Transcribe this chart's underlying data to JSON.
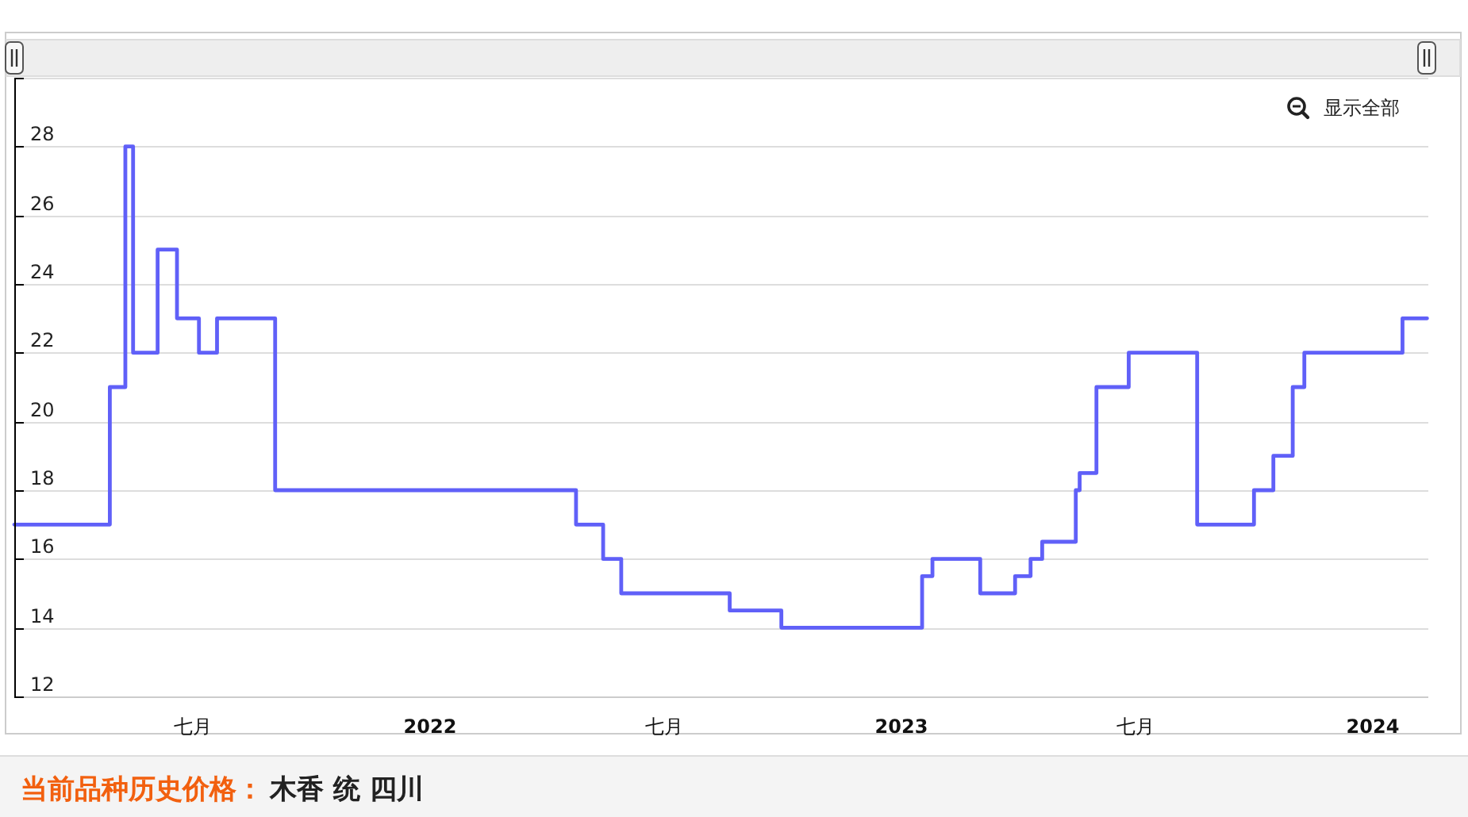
{
  "chart_data": {
    "type": "step",
    "x": [
      "2021-02-13",
      "2021-04-28",
      "2021-05-10",
      "2021-05-16",
      "2021-06-04",
      "2021-06-19",
      "2021-07-06",
      "2021-07-20",
      "2021-09-03",
      "2022-04-24",
      "2022-05-15",
      "2022-05-29",
      "2022-08-21",
      "2022-09-30",
      "2023-01-17",
      "2023-01-25",
      "2023-03-03",
      "2023-03-30",
      "2023-04-11",
      "2023-04-20",
      "2023-05-16",
      "2023-05-19",
      "2023-06-01",
      "2023-06-26",
      "2023-08-18",
      "2023-10-01",
      "2023-10-16",
      "2023-10-31",
      "2023-11-09",
      "2024-01-24",
      "2024-02-12"
    ],
    "series": [
      {
        "color": "#6060f8",
        "values": [
          17,
          21,
          28,
          22,
          25,
          23,
          22,
          23,
          18,
          17,
          16,
          15,
          14.5,
          14,
          15.5,
          16,
          15,
          15.5,
          16,
          16.5,
          18,
          18.5,
          21,
          22,
          17,
          18,
          19,
          21,
          22,
          23,
          23
        ]
      }
    ],
    "xlim": [
      "2021-02-13",
      "2024-02-13"
    ],
    "xticks": [
      {
        "value": "2021-07-01",
        "label": "七月"
      },
      {
        "value": "2022-01-01",
        "label": "2022"
      },
      {
        "value": "2022-07-01",
        "label": "七月"
      },
      {
        "value": "2023-01-01",
        "label": "2023"
      },
      {
        "value": "2023-07-01",
        "label": "七月"
      },
      {
        "value": "2024-01-01",
        "label": "2024"
      }
    ],
    "ylim": [
      12,
      30
    ],
    "yticks": [
      12,
      14,
      16,
      18,
      20,
      22,
      24,
      26,
      28,
      {
        "value": 30,
        "label": null
      }
    ],
    "grid": "y",
    "annotations": [
      "显示全部",
      "当前品种历史价格：",
      "木香 统 四川"
    ]
  }
}
